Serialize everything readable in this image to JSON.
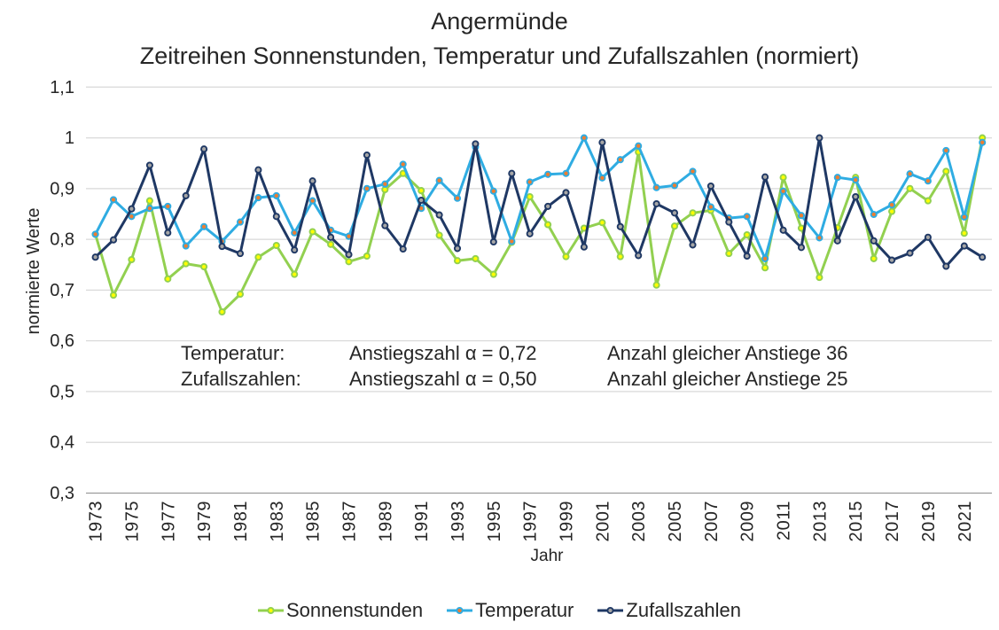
{
  "chart_data": {
    "type": "line",
    "title": "Angermünde",
    "subtitle": "Zeitreihen Sonnenstunden, Temperatur und Zufallszahlen (normiert)",
    "xlabel": "Jahr",
    "ylabel": "normierte Werte",
    "ylim": [
      0.3,
      1.1
    ],
    "ytick_step": 0.1,
    "ytick_labels": [
      "0,3",
      "0,4",
      "0,5",
      "0,6",
      "0,7",
      "0,8",
      "0,9",
      "1",
      "1,1"
    ],
    "x_years": [
      1973,
      1974,
      1975,
      1976,
      1977,
      1978,
      1979,
      1980,
      1981,
      1982,
      1983,
      1984,
      1985,
      1986,
      1987,
      1988,
      1989,
      1990,
      1991,
      1992,
      1993,
      1994,
      1995,
      1996,
      1997,
      1998,
      1999,
      2000,
      2001,
      2002,
      2003,
      2004,
      2005,
      2006,
      2007,
      2008,
      2009,
      2010,
      2011,
      2012,
      2013,
      2014,
      2015,
      2016,
      2017,
      2018,
      2019,
      2020,
      2021,
      2022
    ],
    "xtick_label_every": 2,
    "grid": true,
    "legend_position": "bottom",
    "series": [
      {
        "name": "Sonnenstunden",
        "color": "#92D050",
        "marker_fill": "#FFFF00",
        "values": [
          0.81,
          0.69,
          0.76,
          0.876,
          0.722,
          0.752,
          0.746,
          0.657,
          0.692,
          0.765,
          0.788,
          0.731,
          0.815,
          0.79,
          0.756,
          0.767,
          0.898,
          0.93,
          0.896,
          0.808,
          0.758,
          0.762,
          0.731,
          0.794,
          0.884,
          0.829,
          0.766,
          0.822,
          0.833,
          0.766,
          0.972,
          0.71,
          0.826,
          0.852,
          0.857,
          0.772,
          0.809,
          0.744,
          0.922,
          0.822,
          0.725,
          0.823,
          0.922,
          0.762,
          0.855,
          0.9,
          0.876,
          0.934,
          0.812,
          1.0
        ]
      },
      {
        "name": "Temperatur",
        "color": "#2FACE2",
        "marker_fill": "#ED7D31",
        "values": [
          0.81,
          0.878,
          0.845,
          0.861,
          0.865,
          0.787,
          0.825,
          0.796,
          0.834,
          0.882,
          0.886,
          0.813,
          0.876,
          0.818,
          0.806,
          0.9,
          0.909,
          0.948,
          0.861,
          0.916,
          0.881,
          0.982,
          0.895,
          0.796,
          0.913,
          0.928,
          0.93,
          1.0,
          0.921,
          0.957,
          0.984,
          0.902,
          0.906,
          0.934,
          0.864,
          0.842,
          0.845,
          0.762,
          0.895,
          0.847,
          0.803,
          0.922,
          0.917,
          0.849,
          0.868,
          0.929,
          0.915,
          0.975,
          0.844,
          0.991
        ]
      },
      {
        "name": "Zufallszahlen",
        "color": "#1F3864",
        "marker_fill": "#A6A6A6",
        "values": [
          0.765,
          0.799,
          0.86,
          0.946,
          0.813,
          0.886,
          0.978,
          0.786,
          0.772,
          0.937,
          0.845,
          0.779,
          0.915,
          0.804,
          0.77,
          0.966,
          0.827,
          0.781,
          0.877,
          0.848,
          0.782,
          0.988,
          0.795,
          0.93,
          0.811,
          0.865,
          0.892,
          0.785,
          0.991,
          0.825,
          0.768,
          0.87,
          0.852,
          0.789,
          0.905,
          0.834,
          0.767,
          0.923,
          0.818,
          0.784,
          1.0,
          0.797,
          0.884,
          0.797,
          0.759,
          0.773,
          0.804,
          0.747,
          0.787,
          0.765
        ]
      }
    ],
    "annotations": {
      "rows": [
        {
          "label": "Temperatur:",
          "alpha": "Anstiegszahl α = 0,72",
          "count": "Anzahl gleicher Anstiege 36"
        },
        {
          "label": "Zufallszahlen:",
          "alpha": "Anstiegszahl α = 0,50",
          "count": "Anzahl gleicher Anstiege 25"
        }
      ]
    }
  },
  "layout_colors": {
    "gridline": "#D9D9D9",
    "axis_line": "#9B9B9B",
    "text": "#262626"
  }
}
